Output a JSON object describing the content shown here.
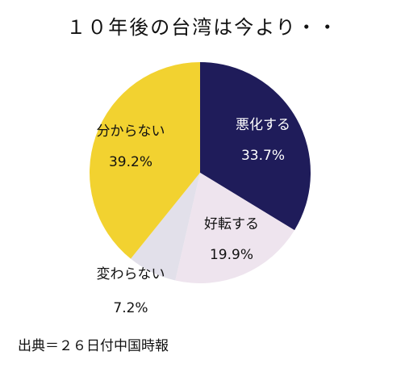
{
  "chart_data": {
    "type": "pie",
    "title": "１０年後の台湾は今より・・",
    "slices": [
      {
        "label": "悪化する",
        "value": 33.7,
        "value_text": "33.7%",
        "color": "#1f1c5a",
        "text_color": "#ffffff"
      },
      {
        "label": "好転する",
        "value": 19.9,
        "value_text": "19.9%",
        "color": "#eee4ee",
        "text_color": "#111111"
      },
      {
        "label": "変わらない",
        "value": 7.2,
        "value_text": "7.2%",
        "color": "#e2e0ea",
        "text_color": "#111111"
      },
      {
        "label": "分からない",
        "value": 39.2,
        "value_text": "39.2%",
        "color": "#f2d230",
        "text_color": "#111111"
      }
    ]
  },
  "source": "出典＝２６日付中国時報"
}
